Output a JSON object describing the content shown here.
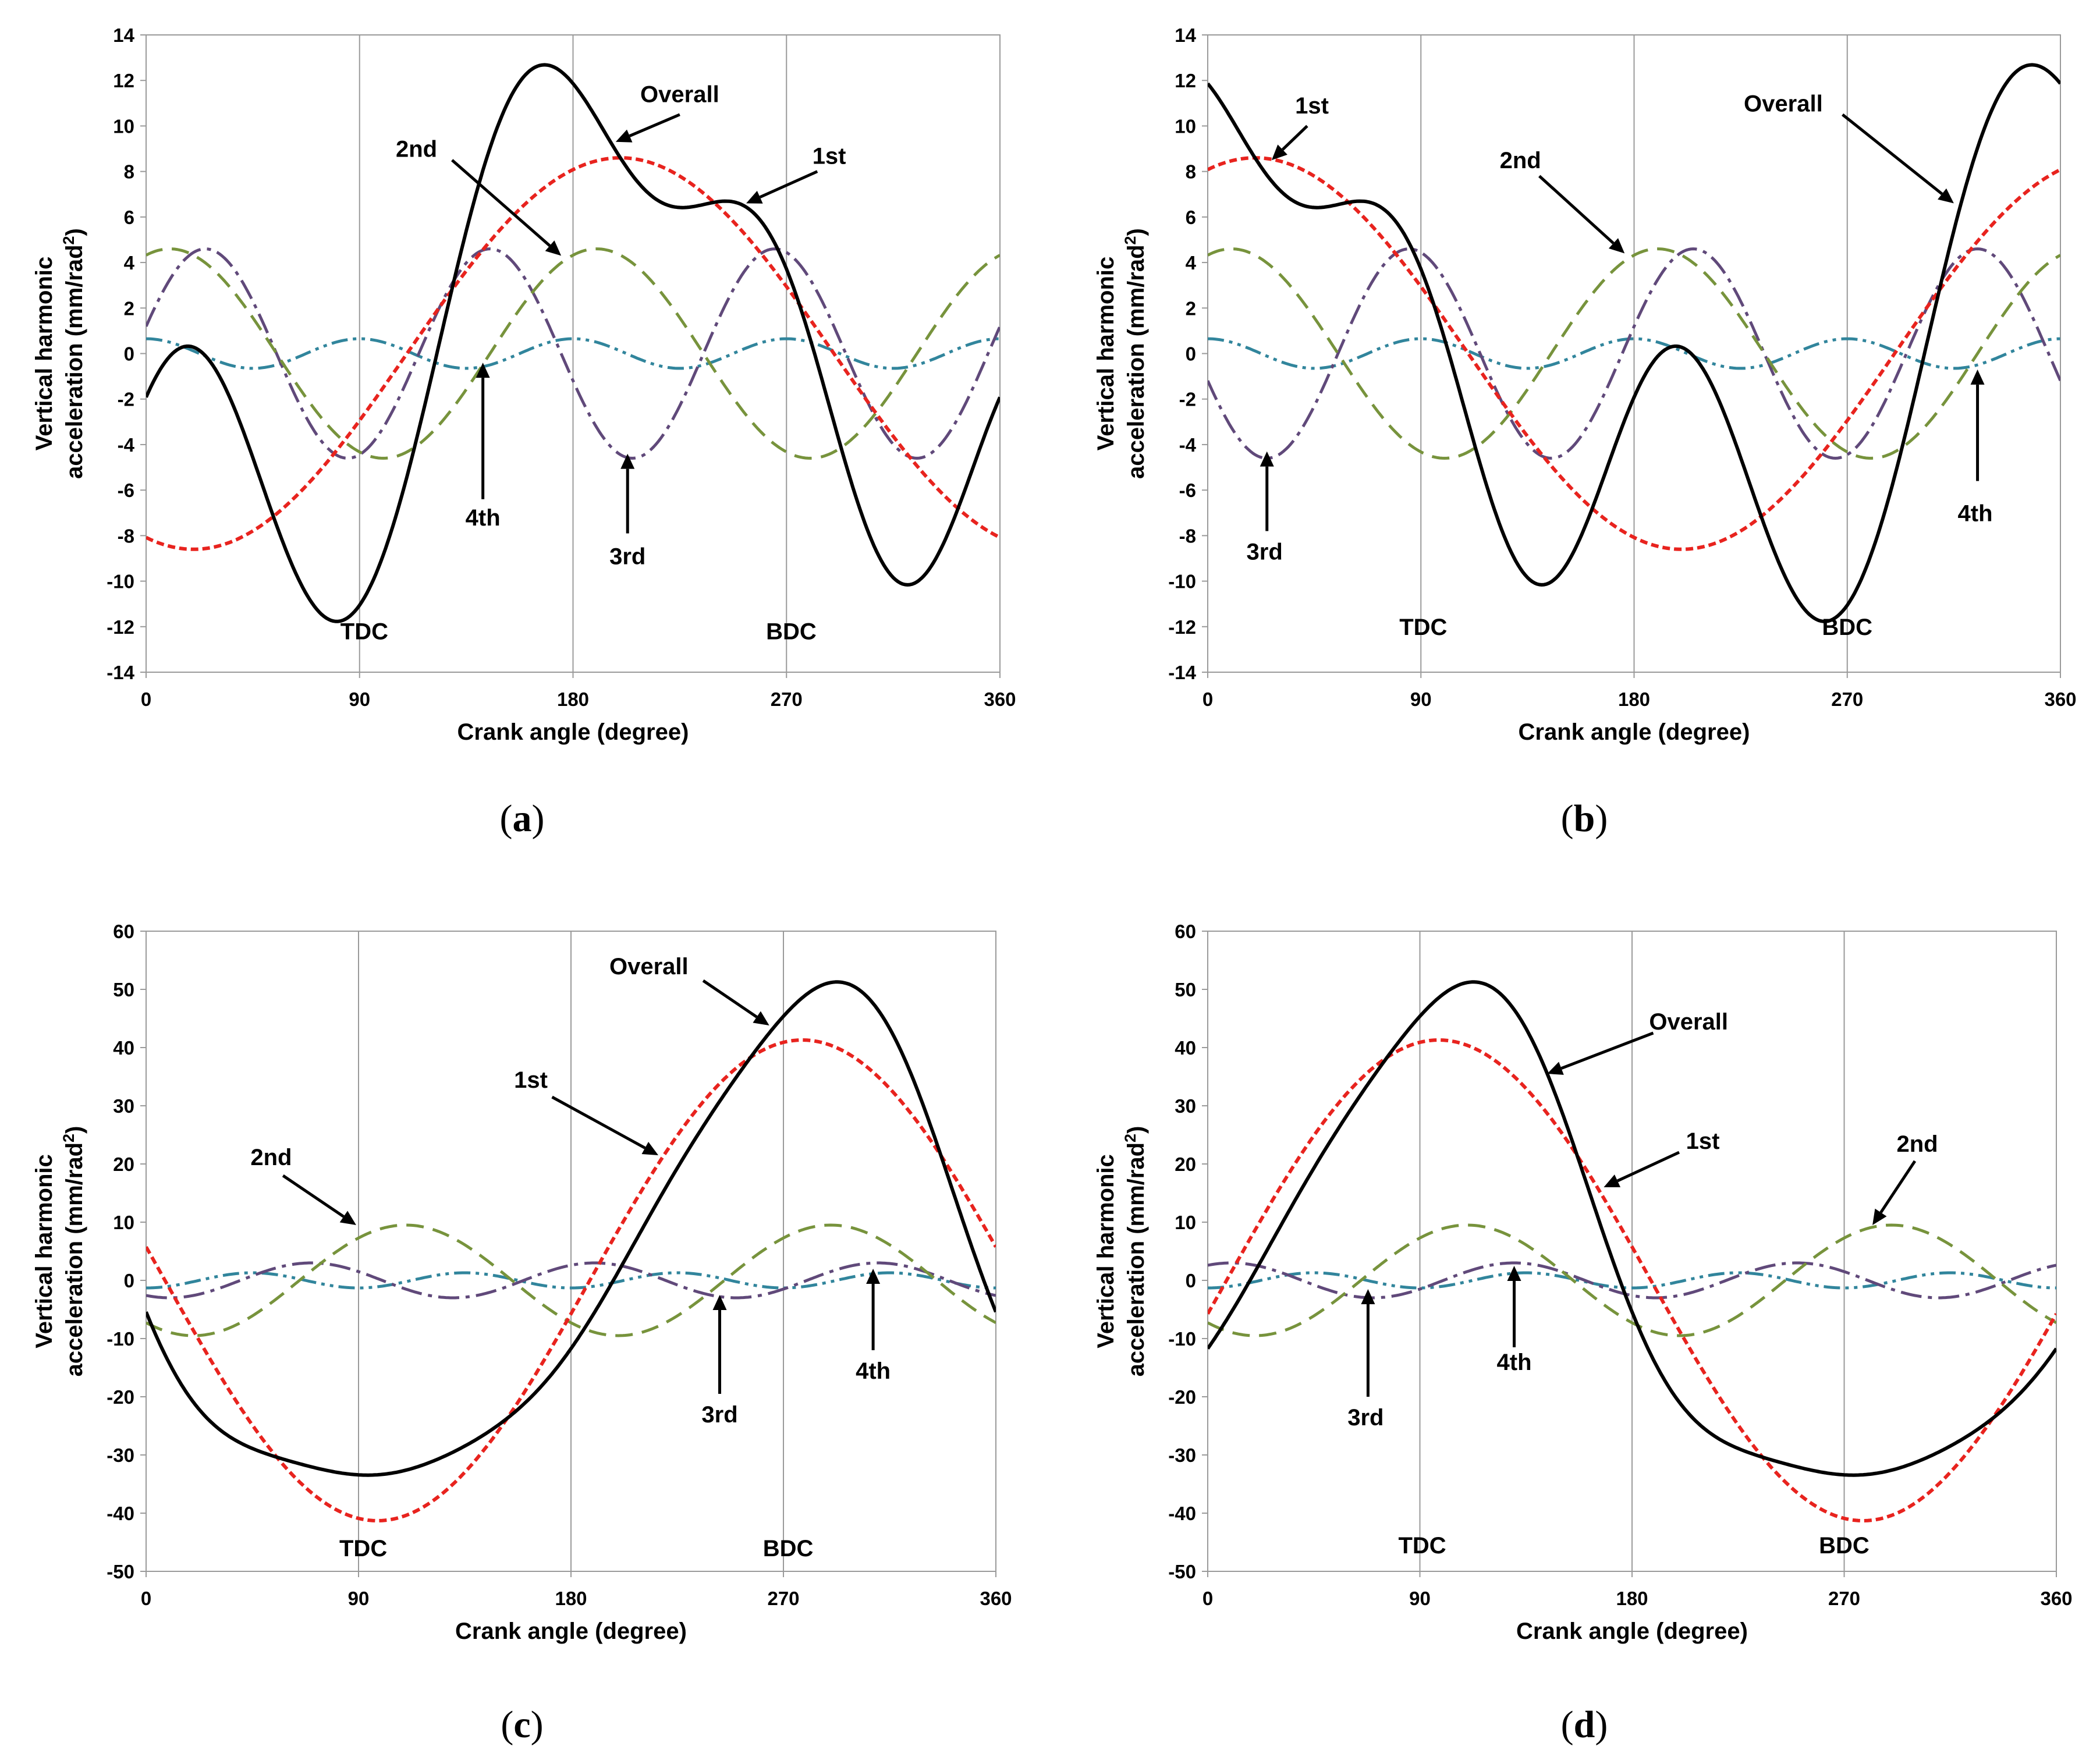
{
  "colors": {
    "overall": "#000000",
    "first": "#e8231e",
    "second": "#77933c",
    "third": "#60497a",
    "fourth": "#31859c"
  },
  "chart_data": [
    {
      "type": "line",
      "caption": "a",
      "xlabel": "Crank angle (degree)",
      "ylabel_line1": "Vertical harmonic",
      "ylabel_line2": "acceleration (mm/rad",
      "ylabel_sup": "2",
      "ylabel_close": ")",
      "xlim": [
        0,
        360
      ],
      "ylim": [
        -14,
        14
      ],
      "xticks": [
        0,
        90,
        180,
        270,
        360
      ],
      "yticks": [
        -14,
        -12,
        -10,
        -8,
        -6,
        -4,
        -2,
        0,
        2,
        4,
        6,
        8,
        10,
        12,
        14
      ],
      "series": [
        {
          "name": "1st",
          "harmonic": 1,
          "amplitude": 8.6,
          "peak_angle": 200
        },
        {
          "name": "2nd",
          "harmonic": 2,
          "amplitude": 4.6,
          "peak_angle": 10
        },
        {
          "name": "3rd",
          "harmonic": 3,
          "amplitude": 4.6,
          "peak_angle": 25
        },
        {
          "name": "4th",
          "harmonic": 4,
          "amplitude": 0.65,
          "peak_angle": 0
        },
        {
          "name": "Overall",
          "sum_of": [
            "1st",
            "2nd",
            "3rd",
            "4th"
          ]
        }
      ],
      "labels": [
        {
          "text": "TDC",
          "x": 92,
          "y": -12.2
        },
        {
          "text": "BDC",
          "x": 272,
          "y": -12.2
        },
        {
          "text": "Overall",
          "x": 225,
          "y": 11.4
        },
        {
          "text": "1st",
          "x": 288,
          "y": 8.7
        },
        {
          "text": "2nd",
          "x": 114,
          "y": 9.0
        },
        {
          "text": "4th",
          "x": 142,
          "y": -7.2
        },
        {
          "text": "3rd",
          "x": 203,
          "y": -8.9
        }
      ],
      "arrows": [
        {
          "from": [
            225,
            10.5
          ],
          "to": [
            198,
            9.3
          ]
        },
        {
          "from": [
            283,
            8.0
          ],
          "to": [
            253,
            6.6
          ]
        },
        {
          "from": [
            129,
            8.5
          ],
          "to": [
            175,
            4.3
          ]
        },
        {
          "from": [
            142,
            -6.4
          ],
          "to": [
            142,
            -0.4
          ]
        },
        {
          "from": [
            203,
            -7.9
          ],
          "to": [
            203,
            -4.4
          ]
        }
      ]
    },
    {
      "type": "line",
      "caption": "b",
      "xlabel": "Crank angle (degree)",
      "ylabel_line1": "Vertical harmonic",
      "ylabel_line2": "acceleration (mm/rad",
      "ylabel_sup": "2",
      "ylabel_close": ")",
      "xlim": [
        0,
        360
      ],
      "ylim": [
        -14,
        14
      ],
      "xticks": [
        0,
        90,
        180,
        270,
        360
      ],
      "yticks": [
        -14,
        -12,
        -10,
        -8,
        -6,
        -4,
        -2,
        0,
        2,
        4,
        6,
        8,
        10,
        12,
        14
      ],
      "series": [
        {
          "name": "1st",
          "harmonic": 1,
          "amplitude": 8.6,
          "peak_angle": 20
        },
        {
          "name": "2nd",
          "harmonic": 2,
          "amplitude": 4.6,
          "peak_angle": 10
        },
        {
          "name": "3rd",
          "harmonic": 3,
          "amplitude": 4.6,
          "peak_angle": 85
        },
        {
          "name": "4th",
          "harmonic": 4,
          "amplitude": 0.65,
          "peak_angle": 0
        },
        {
          "name": "Overall",
          "sum_of": [
            "1st",
            "2nd",
            "3rd",
            "4th"
          ]
        }
      ],
      "labels": [
        {
          "text": "1st",
          "x": 44,
          "y": 10.9
        },
        {
          "text": "Overall",
          "x": 243,
          "y": 11.0
        },
        {
          "text": "2nd",
          "x": 132,
          "y": 8.5
        },
        {
          "text": "3rd",
          "x": 24,
          "y": -8.7
        },
        {
          "text": "4th",
          "x": 324,
          "y": -7.0
        },
        {
          "text": "TDC",
          "x": 91,
          "y": -12.0
        },
        {
          "text": "BDC",
          "x": 270,
          "y": -12.0
        }
      ],
      "arrows": [
        {
          "from": [
            42,
            10.0
          ],
          "to": [
            27,
            8.5
          ]
        },
        {
          "from": [
            268,
            10.5
          ],
          "to": [
            315,
            6.6
          ]
        },
        {
          "from": [
            140,
            7.8
          ],
          "to": [
            176,
            4.4
          ]
        },
        {
          "from": [
            25,
            -7.8
          ],
          "to": [
            25,
            -4.3
          ]
        },
        {
          "from": [
            325,
            -5.6
          ],
          "to": [
            325,
            -0.7
          ]
        }
      ]
    },
    {
      "type": "line",
      "caption": "c",
      "xlabel": "Crank angle (degree)",
      "ylabel_line1": "Vertical harmonic",
      "ylabel_line2": "acceleration (mm/rad",
      "ylabel_sup": "2",
      "ylabel_close": ")",
      "xlim": [
        0,
        360
      ],
      "ylim": [
        -50,
        60
      ],
      "xticks": [
        0,
        90,
        180,
        270,
        360
      ],
      "yticks": [
        -50,
        -40,
        -30,
        -20,
        -10,
        0,
        10,
        20,
        30,
        40,
        50,
        60
      ],
      "series": [
        {
          "name": "1st",
          "harmonic": 1,
          "amplitude": 41.3,
          "peak_angle": 278
        },
        {
          "name": "2nd",
          "harmonic": 2,
          "amplitude": 9.5,
          "peak_angle": 110
        },
        {
          "name": "3rd",
          "harmonic": 3,
          "amplitude": 3.0,
          "peak_angle": 70
        },
        {
          "name": "4th",
          "harmonic": 4,
          "amplitude": 1.3,
          "peak_angle": 45
        },
        {
          "name": "Overall",
          "sum_of": [
            "1st",
            "2nd",
            "3rd",
            "4th"
          ]
        }
      ],
      "labels": [
        {
          "text": "Overall",
          "x": 213,
          "y": 54.0
        },
        {
          "text": "1st",
          "x": 163,
          "y": 34.5
        },
        {
          "text": "2nd",
          "x": 53,
          "y": 21.2
        },
        {
          "text": "3rd",
          "x": 243,
          "y": -23.0
        },
        {
          "text": "4th",
          "x": 308,
          "y": -15.5
        },
        {
          "text": "TDC",
          "x": 92,
          "y": -46.0
        },
        {
          "text": "BDC",
          "x": 272,
          "y": -46.0
        }
      ],
      "arrows": [
        {
          "from": [
            236,
            51.5
          ],
          "to": [
            264,
            43.8
          ]
        },
        {
          "from": [
            172,
            31.5
          ],
          "to": [
            217,
            21.5
          ]
        },
        {
          "from": [
            58,
            18.0
          ],
          "to": [
            89,
            9.5
          ]
        },
        {
          "from": [
            243,
            -19.5
          ],
          "to": [
            243,
            -2.5
          ]
        },
        {
          "from": [
            308,
            -12.0
          ],
          "to": [
            308,
            2.0
          ]
        }
      ]
    },
    {
      "type": "line",
      "caption": "d",
      "xlabel": "Crank angle (degree)",
      "ylabel_line1": "Vertical harmonic",
      "ylabel_line2": "acceleration (mm/rad",
      "ylabel_sup": "2",
      "ylabel_close": ")",
      "xlim": [
        0,
        360
      ],
      "ylim": [
        -50,
        60
      ],
      "xticks": [
        0,
        90,
        180,
        270,
        360
      ],
      "yticks": [
        -50,
        -40,
        -30,
        -20,
        -10,
        0,
        10,
        20,
        30,
        40,
        50,
        60
      ],
      "series": [
        {
          "name": "1st",
          "harmonic": 1,
          "amplitude": 41.3,
          "peak_angle": 98
        },
        {
          "name": "2nd",
          "harmonic": 2,
          "amplitude": 9.5,
          "peak_angle": 110
        },
        {
          "name": "3rd",
          "harmonic": 3,
          "amplitude": 3.0,
          "peak_angle": 130
        },
        {
          "name": "4th",
          "harmonic": 4,
          "amplitude": 1.3,
          "peak_angle": 45
        },
        {
          "name": "Overall",
          "sum_of": [
            "1st",
            "2nd",
            "3rd",
            "4th"
          ]
        }
      ],
      "labels": [
        {
          "text": "Overall",
          "x": 204,
          "y": 44.5
        },
        {
          "text": "1st",
          "x": 210,
          "y": 24.0
        },
        {
          "text": "2nd",
          "x": 301,
          "y": 23.5
        },
        {
          "text": "3rd",
          "x": 67,
          "y": -23.5
        },
        {
          "text": "4th",
          "x": 130,
          "y": -14.0
        },
        {
          "text": "TDC",
          "x": 91,
          "y": -45.5
        },
        {
          "text": "BDC",
          "x": 270,
          "y": -45.5
        }
      ],
      "arrows": [
        {
          "from": [
            189,
            42.5
          ],
          "to": [
            144,
            35.5
          ]
        },
        {
          "from": [
            200,
            22.0
          ],
          "to": [
            168,
            16.0
          ]
        },
        {
          "from": [
            300,
            20.5
          ],
          "to": [
            282,
            9.5
          ]
        },
        {
          "from": [
            68,
            -20.0
          ],
          "to": [
            68,
            -1.5
          ]
        },
        {
          "from": [
            130,
            -11.5
          ],
          "to": [
            130,
            2.5
          ]
        }
      ]
    }
  ]
}
